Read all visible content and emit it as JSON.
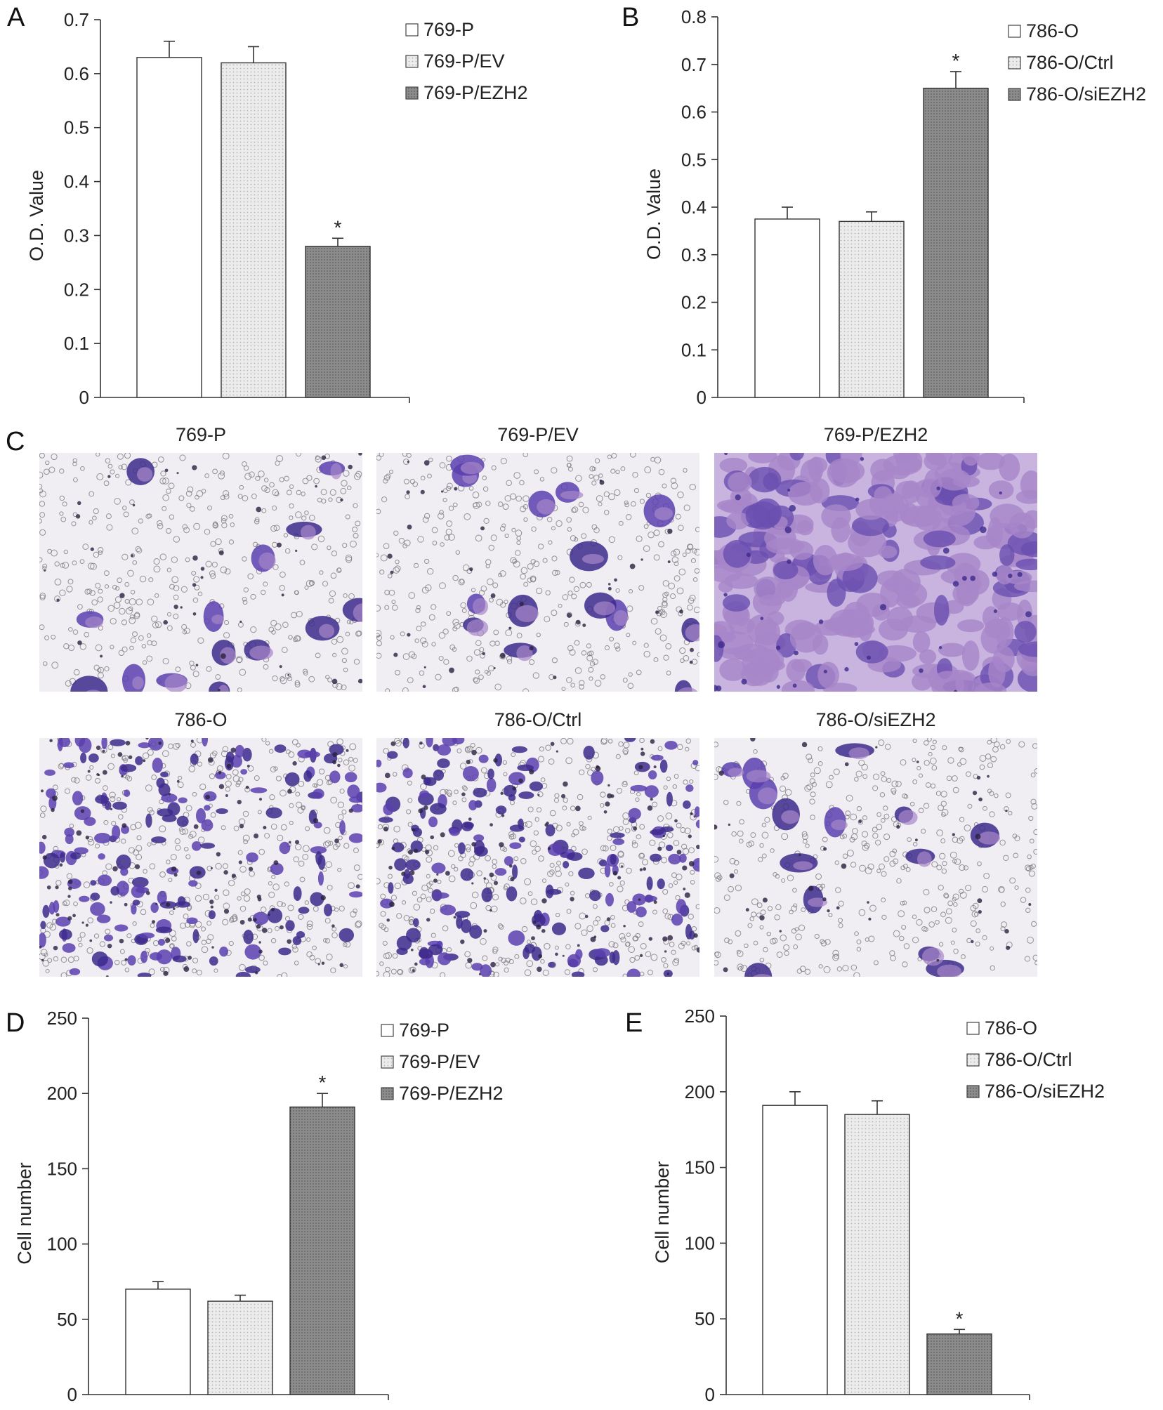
{
  "figure": {
    "panel_letters": [
      "A",
      "B",
      "C",
      "D",
      "E"
    ],
    "colors": {
      "group1": "#ffffff",
      "group2": "#ebebeb",
      "group3": "#8a8a8a",
      "stain_light": "#a786c9",
      "stain_dark": "#3d2a8c",
      "membrane": "#f1eef3"
    }
  },
  "chart_data": [
    {
      "panel": "A",
      "type": "bar",
      "categories": [
        "769-P",
        "769-P/EV",
        "769-P/EZH2"
      ],
      "values": [
        0.63,
        0.62,
        0.28
      ],
      "errors": [
        0.03,
        0.03,
        0.015
      ],
      "significance": [
        "",
        "",
        "*"
      ],
      "ylabel": "O.D. Value",
      "ylim": [
        0,
        0.7
      ],
      "yticks": [
        0,
        0.1,
        0.2,
        0.3,
        0.4,
        0.5,
        0.6,
        0.7
      ],
      "ytick_labels": [
        "0",
        "0.1",
        "0.2",
        "0.3",
        "0.4",
        "0.5",
        "0.6",
        "0.7"
      ],
      "legend": [
        "769-P",
        "769-P/EV",
        "769-P/EZH2"
      ],
      "legend_position": "top-right",
      "grid": false
    },
    {
      "panel": "B",
      "type": "bar",
      "categories": [
        "786-O",
        "786-O/Ctrl",
        "786-O/siEZH2"
      ],
      "values": [
        0.375,
        0.37,
        0.65
      ],
      "errors": [
        0.025,
        0.02,
        0.035
      ],
      "significance": [
        "",
        "",
        "*"
      ],
      "ylabel": "O.D. Value",
      "ylim": [
        0,
        0.8
      ],
      "yticks": [
        0,
        0.1,
        0.2,
        0.3,
        0.4,
        0.5,
        0.6,
        0.7,
        0.8
      ],
      "ytick_labels": [
        "0",
        "0.1",
        "0.2",
        "0.3",
        "0.4",
        "0.5",
        "0.6",
        "0.7",
        "0.8"
      ],
      "legend": [
        "786-O",
        "786-O/Ctrl",
        "786-O/siEZH2"
      ],
      "legend_position": "top-right",
      "grid": false
    },
    {
      "panel": "D",
      "type": "bar",
      "categories": [
        "769-P",
        "769-P/EV",
        "769-P/EZH2"
      ],
      "values": [
        70,
        62,
        191
      ],
      "errors": [
        5,
        4,
        9
      ],
      "significance": [
        "",
        "",
        "*"
      ],
      "ylabel": "Cell number",
      "ylim": [
        0,
        250
      ],
      "yticks": [
        0,
        50,
        100,
        150,
        200,
        250
      ],
      "ytick_labels": [
        "0",
        "50",
        "100",
        "150",
        "200",
        "250"
      ],
      "legend": [
        "769-P",
        "769-P/EV",
        "769-P/EZH2"
      ],
      "legend_position": "top-right",
      "grid": false
    },
    {
      "panel": "E",
      "type": "bar",
      "categories": [
        "786-O",
        "786-O/Ctrl",
        "786-O/siEZH2"
      ],
      "values": [
        191,
        185,
        40
      ],
      "errors": [
        9,
        9,
        3
      ],
      "significance": [
        "",
        "",
        "*"
      ],
      "ylabel": "Cell number",
      "ylim": [
        0,
        250
      ],
      "yticks": [
        0,
        50,
        100,
        150,
        200,
        250
      ],
      "ytick_labels": [
        "0",
        "50",
        "100",
        "150",
        "200",
        "250"
      ],
      "legend": [
        "786-O",
        "786-O/Ctrl",
        "786-O/siEZH2"
      ],
      "legend_position": "top-right",
      "grid": false
    }
  ],
  "micrographs": [
    {
      "title": "769-P",
      "density": "sparse"
    },
    {
      "title": "769-P/EV",
      "density": "sparse"
    },
    {
      "title": "769-P/EZH2",
      "density": "confluent"
    },
    {
      "title": "786-O",
      "density": "dense"
    },
    {
      "title": "786-O/Ctrl",
      "density": "dense"
    },
    {
      "title": "786-O/siEZH2",
      "density": "sparse"
    }
  ]
}
